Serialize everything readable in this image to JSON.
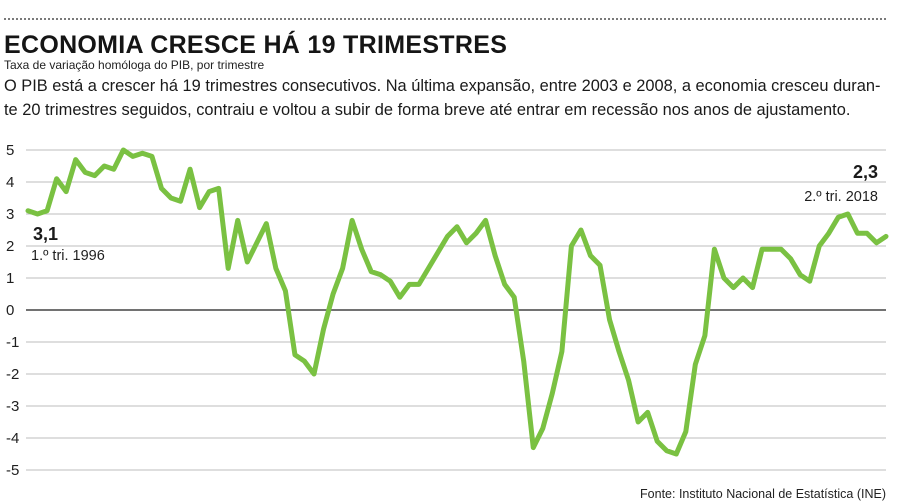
{
  "header": {
    "title": "ECONOMIA CRESCE HÁ 19 TRIMESTRES",
    "subtitle": "Taxa de variação homóloga do PIB, por trimestre",
    "lead_line1": "O PIB está a crescer há 19 trimestres consecutivos. Na última expansão, entre 2003 e 2008, a economia cresceu duran-",
    "lead_line2": "te 20 trimestres seguidos, contraiu e voltou a subir de forma breve até entrar em recessão nos anos de ajustamento."
  },
  "source": "Fonte: Instituto Nacional de Estatística (INE)",
  "colors": {
    "line": "#7ac142",
    "grid": "#bdbdbd",
    "text": "#1a1a1a"
  },
  "chart_data": {
    "type": "line",
    "title": "ECONOMIA CRESCE HÁ 19 TRIMESTRES",
    "subtitle": "Taxa de variação homóloga do PIB, por trimestre",
    "xlabel": "",
    "ylabel": "",
    "ylim": [
      -5,
      5
    ],
    "yticks": [
      5,
      4,
      3,
      2,
      1,
      0,
      -1,
      -2,
      -3,
      -4,
      -5
    ],
    "ytick_labels": [
      "5",
      "4",
      "3",
      "2",
      "1",
      "0",
      "-1",
      "-2",
      "-3",
      "-4",
      "-5"
    ],
    "grid": true,
    "x_start": "1.º tri. 1996",
    "x_end": "2.º tri. 2018",
    "series": [
      {
        "values": [
          3.1,
          3.0,
          3.1,
          4.1,
          3.7,
          4.7,
          4.3,
          4.2,
          4.5,
          4.4,
          5.0,
          4.8,
          4.9,
          4.8,
          3.8,
          3.5,
          3.4,
          4.4,
          3.2,
          3.7,
          3.8,
          1.3,
          2.8,
          1.5,
          2.1,
          2.7,
          1.3,
          0.6,
          -1.4,
          -1.6,
          -2.0,
          -0.6,
          0.5,
          1.3,
          2.8,
          1.9,
          1.2,
          1.1,
          0.9,
          0.4,
          0.8,
          0.8,
          1.3,
          1.8,
          2.3,
          2.6,
          2.1,
          2.4,
          2.8,
          1.7,
          0.8,
          0.4,
          -1.6,
          -4.3,
          -3.7,
          -2.6,
          -1.3,
          2.0,
          2.5,
          1.7,
          1.4,
          -0.3,
          -1.3,
          -2.2,
          -3.5,
          -3.2,
          -4.1,
          -4.4,
          -4.5,
          -3.8,
          -1.7,
          -0.8,
          1.9,
          1.0,
          0.7,
          1.0,
          0.7,
          1.9,
          1.9,
          1.9,
          1.6,
          1.1,
          0.9,
          2.0,
          2.4,
          2.9,
          3.0,
          2.4,
          2.4,
          2.1,
          2.3
        ]
      }
    ],
    "annotations": [
      {
        "value": "3,1",
        "label": "1.º tri. 1996",
        "point": "first"
      },
      {
        "value": "2,3",
        "label": "2.º tri. 2018",
        "point": "last"
      }
    ]
  }
}
